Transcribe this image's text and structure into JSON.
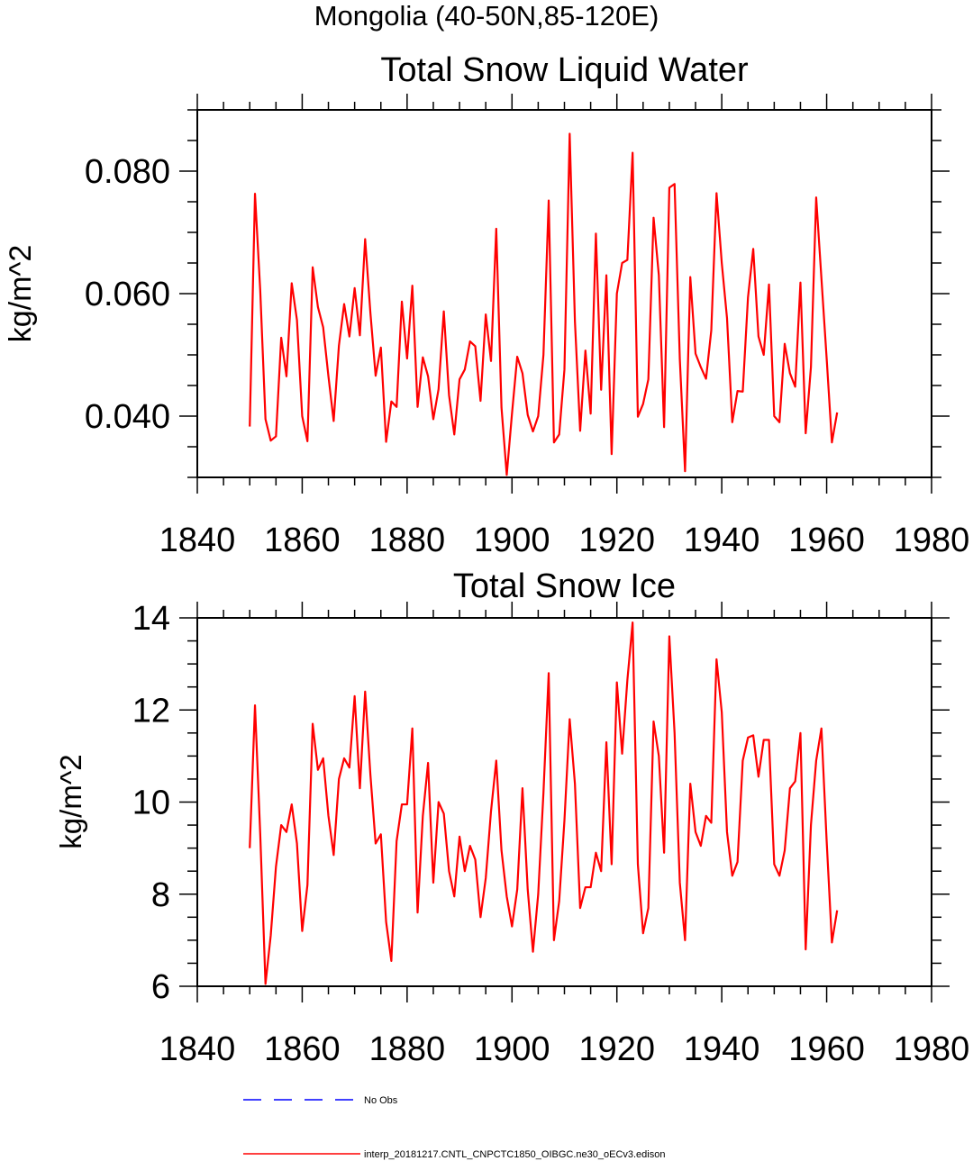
{
  "suptitle": "Mongolia (40-50N,85-120E)",
  "colors": {
    "model": "#ff0000",
    "obs": "#0000ff",
    "axis": "#000000"
  },
  "legend": {
    "obs_label": "No Obs",
    "model_label": "interp_20181217.CNTL_CNPCTC1850_OIBGC.ne30_oECv3.edison"
  },
  "chart_data": [
    {
      "type": "line",
      "title": "Total Snow Liquid Water",
      "xlabel": "",
      "ylabel": "kg/m^2",
      "xlim": [
        1840,
        1980
      ],
      "ylim": [
        0.03,
        0.09
      ],
      "xticks": [
        1840,
        1860,
        1880,
        1900,
        1920,
        1940,
        1960,
        1980
      ],
      "xtick_labels": [
        "1840",
        "1860",
        "1880",
        "1900",
        "1920",
        "1940",
        "1960",
        "1980"
      ],
      "yticks": [
        0.04,
        0.06,
        0.08
      ],
      "ytick_labels": [
        "0.040",
        "0.060",
        "0.080"
      ],
      "series": [
        {
          "name": "interp_20181217.CNTL_CNPCTC1850_OIBGC.ne30_oECv3.edison",
          "x_start": 1850,
          "values": [
            0.0383,
            0.0763,
            0.0605,
            0.0395,
            0.036,
            0.0367,
            0.0528,
            0.0465,
            0.0617,
            0.0557,
            0.04,
            0.0359,
            0.0643,
            0.0578,
            0.0545,
            0.0465,
            0.0392,
            0.0515,
            0.0583,
            0.053,
            0.0609,
            0.0532,
            0.0689,
            0.0569,
            0.0466,
            0.0512,
            0.0358,
            0.0424,
            0.0415,
            0.0587,
            0.0494,
            0.0613,
            0.0415,
            0.0496,
            0.0465,
            0.0395,
            0.0444,
            0.0571,
            0.0434,
            0.037,
            0.046,
            0.0476,
            0.0522,
            0.0514,
            0.0425,
            0.0566,
            0.049,
            0.0706,
            0.0414,
            0.0304,
            0.0404,
            0.0497,
            0.047,
            0.0402,
            0.0375,
            0.04,
            0.05,
            0.0752,
            0.0357,
            0.037,
            0.0476,
            0.0861,
            0.0555,
            0.0376,
            0.0507,
            0.0404,
            0.0698,
            0.0443,
            0.063,
            0.0338,
            0.06,
            0.065,
            0.0655,
            0.083,
            0.0399,
            0.042,
            0.046,
            0.0724,
            0.063,
            0.0382,
            0.0773,
            0.0779,
            0.0493,
            0.031,
            0.0627,
            0.0502,
            0.048,
            0.0461,
            0.054,
            0.0764,
            0.065,
            0.056,
            0.039,
            0.0441,
            0.044,
            0.0594,
            0.0673,
            0.053,
            0.05,
            0.0615,
            0.04,
            0.039,
            0.0518,
            0.047,
            0.0448,
            0.0618,
            0.0372,
            0.048,
            0.0757,
            0.0625,
            0.0494,
            0.0357,
            0.0406
          ]
        }
      ]
    },
    {
      "type": "line",
      "title": "Total Snow Ice",
      "xlabel": "",
      "ylabel": "kg/m^2",
      "xlim": [
        1840,
        1980
      ],
      "ylim": [
        6,
        14
      ],
      "xticks": [
        1840,
        1860,
        1880,
        1900,
        1920,
        1940,
        1960,
        1980
      ],
      "xtick_labels": [
        "1840",
        "1860",
        "1880",
        "1900",
        "1920",
        "1940",
        "1960",
        "1980"
      ],
      "yticks": [
        6,
        8,
        10,
        12,
        14
      ],
      "ytick_labels": [
        "6",
        "8",
        "10",
        "12",
        "14"
      ],
      "series": [
        {
          "name": "interp_20181217.CNTL_CNPCTC1850_OIBGC.ne30_oECv3.edison",
          "x_start": 1850,
          "values": [
            9.0,
            12.1,
            9.3,
            6.05,
            7.1,
            8.6,
            9.5,
            9.35,
            9.95,
            9.1,
            7.2,
            8.2,
            11.7,
            10.7,
            10.95,
            9.7,
            8.85,
            10.5,
            10.95,
            10.75,
            12.3,
            10.3,
            12.4,
            10.6,
            9.1,
            9.3,
            7.4,
            6.55,
            9.15,
            9.95,
            9.95,
            11.6,
            7.6,
            9.7,
            10.85,
            8.25,
            10.0,
            9.75,
            8.5,
            7.95,
            9.25,
            8.5,
            9.05,
            8.75,
            7.5,
            8.35,
            9.8,
            10.9,
            8.95,
            7.95,
            7.3,
            8.1,
            10.3,
            8.1,
            6.75,
            8.0,
            10.2,
            12.8,
            7.0,
            7.85,
            9.6,
            11.8,
            10.4,
            7.7,
            8.15,
            8.15,
            8.9,
            8.5,
            11.3,
            8.65,
            12.6,
            11.05,
            12.65,
            13.9,
            8.65,
            7.15,
            7.7,
            11.75,
            11.0,
            8.9,
            13.6,
            11.5,
            8.25,
            7.0,
            10.4,
            9.35,
            9.05,
            9.7,
            9.55,
            13.1,
            11.95,
            9.35,
            8.4,
            8.7,
            10.9,
            11.4,
            11.45,
            10.55,
            11.35,
            11.35,
            8.65,
            8.4,
            8.95,
            10.3,
            10.45,
            11.5,
            6.8,
            9.5,
            10.9,
            11.6,
            9.15,
            6.95,
            7.65
          ]
        }
      ]
    }
  ]
}
